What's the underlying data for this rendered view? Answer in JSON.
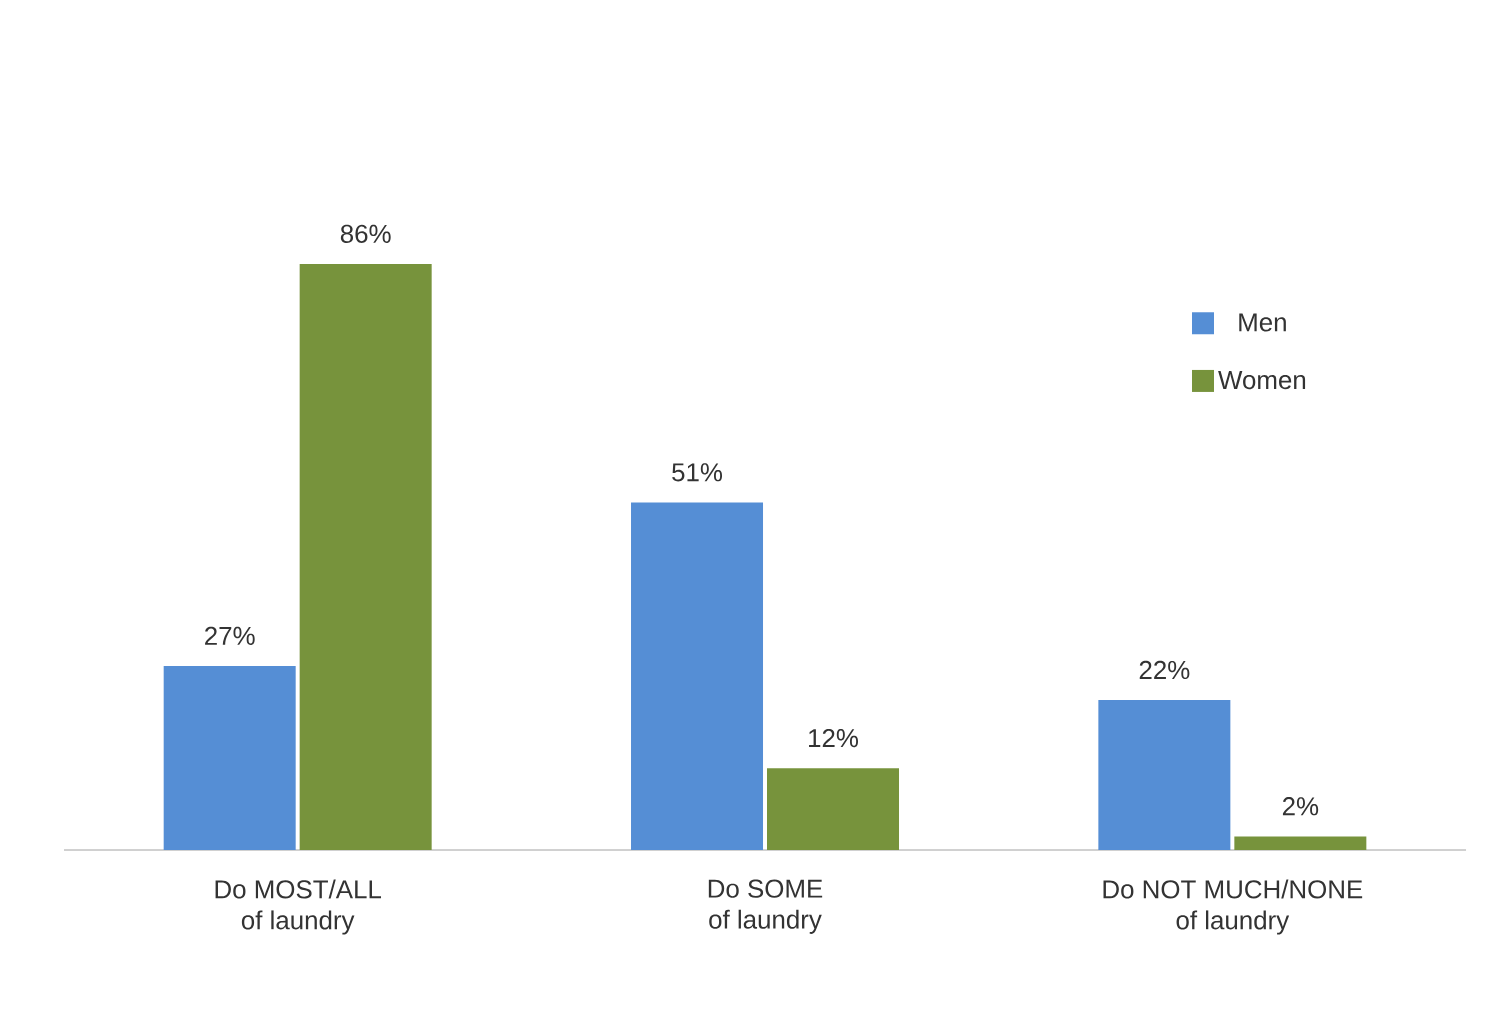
{
  "chart_data": {
    "type": "bar",
    "categories": [
      "Do MOST/ALL of laundry",
      "Do SOME of laundry",
      "Do NOT MUCH/NONE of laundry"
    ],
    "series": [
      {
        "name": "Men",
        "color": "#558ed5",
        "values": [
          27,
          51,
          22
        ],
        "value_labels": [
          "27%",
          "51%",
          "22%"
        ]
      },
      {
        "name": "Women",
        "color": "#77933c",
        "values": [
          86,
          12,
          2
        ],
        "value_labels": [
          "86%",
          "12%",
          "2%"
        ]
      }
    ],
    "tick_labels": "x",
    "legend": "top right"
  }
}
